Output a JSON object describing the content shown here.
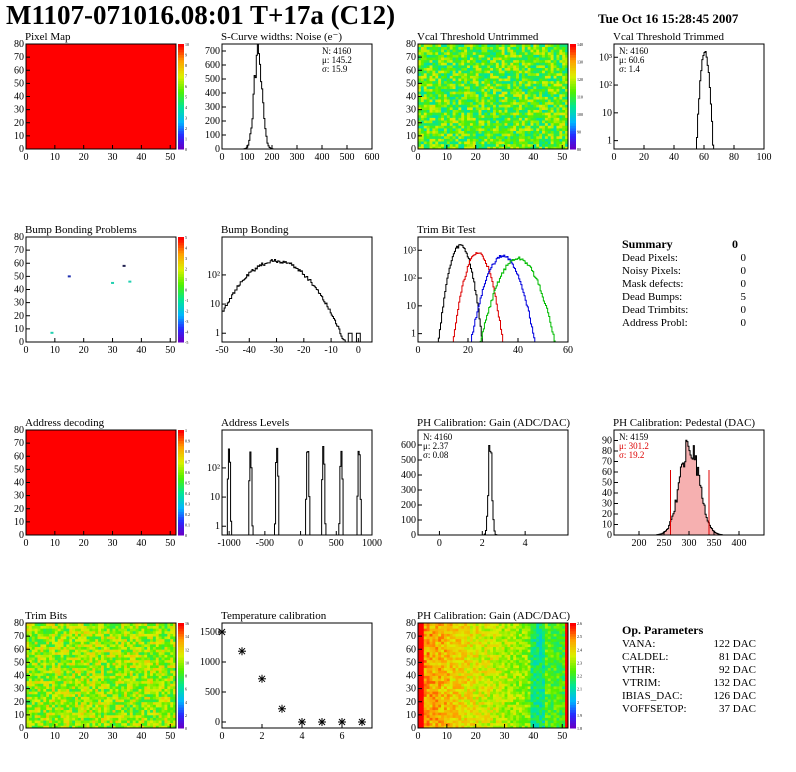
{
  "header": {
    "title": "M1107-071016.08:01 T+17a (C12)",
    "date": "Tue Oct 16 15:28:45 2007"
  },
  "colors": {
    "outline": "#000000",
    "heatmap_base": "#ff0000",
    "red_series": "#dd0000",
    "green_series": "#00bb00",
    "blue_series": "#0000dd"
  },
  "summary": {
    "title": "Summary",
    "total": "0",
    "rows": [
      {
        "label": "Dead Pixels:",
        "value": "0"
      },
      {
        "label": "Noisy Pixels:",
        "value": "0"
      },
      {
        "label": "Mask defects:",
        "value": "0"
      },
      {
        "label": "Dead Bumps:",
        "value": "5"
      },
      {
        "label": "Dead Trimbits:",
        "value": "0"
      },
      {
        "label": "Address Probl:",
        "value": "0"
      }
    ]
  },
  "op_params": {
    "title": "Op. Parameters",
    "rows": [
      {
        "label": "VANA:",
        "value": "122 DAC"
      },
      {
        "label": "CALDEL:",
        "value": "81 DAC"
      },
      {
        "label": "VTHR:",
        "value": "92 DAC"
      },
      {
        "label": "VTRIM:",
        "value": "132 DAC"
      },
      {
        "label": "IBIAS_DAC:",
        "value": "126 DAC"
      },
      {
        "label": "VOFFSETOP:",
        "value": "37 DAC"
      }
    ]
  },
  "chart_data": [
    {
      "id": "pixel-map",
      "type": "heatmap",
      "title": "Pixel Map",
      "xlim": [
        0,
        52
      ],
      "ylim": [
        0,
        80
      ],
      "xticks": [
        0,
        10,
        20,
        30,
        40,
        50
      ],
      "yticks": [
        0,
        10,
        20,
        30,
        40,
        50,
        60,
        70,
        80
      ],
      "fill": "uniform",
      "value": 10,
      "palette_ticks": [
        0,
        1,
        2,
        3,
        4,
        5,
        6,
        7,
        8,
        9,
        10
      ]
    },
    {
      "id": "scurve-noise",
      "type": "histogram",
      "title": "S-Curve widths: Noise (e⁻)",
      "xlim": [
        0,
        600
      ],
      "ylim": [
        0,
        750
      ],
      "xticks": [
        0,
        100,
        200,
        300,
        400,
        500,
        600
      ],
      "yticks": [
        0,
        100,
        200,
        300,
        400,
        500,
        600,
        700
      ],
      "peaks": [
        {
          "mean": 145.2,
          "sigma": 15.9,
          "height": 700
        }
      ],
      "stats": [
        {
          "label": "N:",
          "value": "4160"
        },
        {
          "label": "μ:",
          "value": "145.2"
        },
        {
          "label": "σ:",
          "value": "15.9"
        }
      ]
    },
    {
      "id": "vcal-untrimmed",
      "type": "heatmap",
      "title": "Vcal Threshold Untrimmed",
      "xlim": [
        0,
        52
      ],
      "ylim": [
        0,
        80
      ],
      "xticks": [
        0,
        10,
        20,
        30,
        40,
        50
      ],
      "yticks": [
        0,
        10,
        20,
        30,
        40,
        50,
        60,
        70,
        80
      ],
      "fill": "noise",
      "mean": 0.55,
      "spread": 0.18,
      "palette_ticks": [
        80,
        90,
        100,
        110,
        120,
        130,
        140
      ]
    },
    {
      "id": "vcal-trimmed",
      "type": "histogram",
      "title": "Vcal Threshold Trimmed",
      "log": true,
      "xlim": [
        0,
        100
      ],
      "ylim": [
        0.5,
        3000
      ],
      "xticks": [
        0,
        20,
        40,
        60,
        80,
        100
      ],
      "yticks": [
        1,
        10,
        100,
        1000
      ],
      "peaks": [
        {
          "mean": 60.6,
          "sigma": 1.4,
          "height": 1500
        }
      ],
      "stats": [
        {
          "label": "N:",
          "value": "4160"
        },
        {
          "label": "μ:",
          "value": "60.6"
        },
        {
          "label": "σ:",
          "value": "1.4"
        }
      ]
    },
    {
      "id": "bump-problems",
      "type": "heatmap",
      "title": "Bump Bonding Problems",
      "xlim": [
        0,
        52
      ],
      "ylim": [
        0,
        80
      ],
      "xticks": [
        0,
        10,
        20,
        30,
        40,
        50
      ],
      "yticks": [
        0,
        10,
        20,
        30,
        40,
        50,
        60,
        70,
        80
      ],
      "fill": "empty",
      "points": [
        [
          15,
          50,
          "#2030b0"
        ],
        [
          34,
          58,
          "#202050"
        ],
        [
          30,
          45,
          "#20d0b0"
        ],
        [
          36,
          46,
          "#20d0b0"
        ],
        [
          9,
          7,
          "#20d0b0"
        ]
      ],
      "palette_ticks": [
        -5,
        -4,
        -3,
        -2,
        -1,
        0,
        1,
        2,
        3,
        4,
        5
      ]
    },
    {
      "id": "bump-bonding",
      "type": "histogram",
      "title": "Bump Bonding",
      "log": true,
      "xlim": [
        -50,
        5
      ],
      "ylim": [
        0.5,
        2000
      ],
      "xticks": [
        -50,
        -40,
        -30,
        -20,
        -10,
        0
      ],
      "xticklabels": [
        "-50",
        "-40",
        "-30",
        "-20",
        "-10",
        "0"
      ],
      "yticks": [
        1,
        10,
        100
      ],
      "peaks": [
        {
          "mean": -30,
          "sigma": 7,
          "height": 300
        }
      ],
      "extra": [
        [
          -3,
          1
        ],
        [
          0,
          1
        ]
      ]
    },
    {
      "id": "trim-bit-test",
      "type": "histogram",
      "title": "Trim Bit Test",
      "log": true,
      "xlim": [
        0,
        60
      ],
      "ylim": [
        0.5,
        3000
      ],
      "xticks": [
        0,
        20,
        40,
        60
      ],
      "yticks": [
        1,
        10,
        100,
        1000
      ],
      "peaks": [
        {
          "mean": 17,
          "sigma": 2.2,
          "height": 1500,
          "color": "#000000"
        },
        {
          "mean": 24,
          "sigma": 2.6,
          "height": 800,
          "color": "#dd0000"
        },
        {
          "mean": 34,
          "sigma": 3.4,
          "height": 600,
          "color": "#0000dd"
        },
        {
          "mean": 40,
          "sigma": 4.0,
          "height": 500,
          "color": "#00bb00"
        }
      ]
    },
    {
      "id": "address-decoding",
      "type": "heatmap",
      "title": "Address decoding",
      "xlim": [
        0,
        52
      ],
      "ylim": [
        0,
        80
      ],
      "xticks": [
        0,
        10,
        20,
        30,
        40,
        50
      ],
      "yticks": [
        0,
        10,
        20,
        30,
        40,
        50,
        60,
        70,
        80
      ],
      "fill": "uniform",
      "value": 1,
      "palette_ticks": [
        0,
        0.1,
        0.2,
        0.3,
        0.4,
        0.5,
        0.6,
        0.7,
        0.8,
        0.9,
        1
      ]
    },
    {
      "id": "address-levels",
      "type": "histogram",
      "title": "Address Levels",
      "log": true,
      "xlim": [
        -1100,
        1000
      ],
      "ylim": [
        0.5,
        2000
      ],
      "xticks": [
        -1000,
        -500,
        0,
        500,
        1000
      ],
      "yticks": [
        1,
        10,
        100
      ],
      "peaks": [
        {
          "mean": -1000,
          "sigma": 8,
          "height": 500
        },
        {
          "mean": -700,
          "sigma": 8,
          "height": 400
        },
        {
          "mean": -330,
          "sigma": 8,
          "height": 500
        },
        {
          "mean": 100,
          "sigma": 8,
          "height": 500
        },
        {
          "mean": 320,
          "sigma": 8,
          "height": 500
        },
        {
          "mean": 570,
          "sigma": 8,
          "height": 400
        },
        {
          "mean": 820,
          "sigma": 8,
          "height": 500
        }
      ]
    },
    {
      "id": "ph-gain",
      "type": "histogram",
      "title": "PH Calibration: Gain (ADC/DAC)",
      "xlim": [
        -1,
        6
      ],
      "ylim": [
        0,
        700
      ],
      "xticks": [
        0,
        2,
        4
      ],
      "yticks": [
        0,
        100,
        200,
        300,
        400,
        500,
        600
      ],
      "peaks": [
        {
          "mean": 2.37,
          "sigma": 0.08,
          "height": 620
        }
      ],
      "stats": [
        {
          "label": "N:",
          "value": "4160"
        },
        {
          "label": "μ:",
          "value": "2.37"
        },
        {
          "label": "σ:",
          "value": "0.08"
        }
      ]
    },
    {
      "id": "ph-pedestal",
      "type": "histogram",
      "title": "PH Calibration: Pedestal (DAC)",
      "xlim": [
        150,
        450
      ],
      "ylim": [
        0,
        100
      ],
      "xticks": [
        200,
        250,
        300,
        350,
        400
      ],
      "yticks": [
        0,
        10,
        20,
        30,
        40,
        50,
        60,
        70,
        80,
        90
      ],
      "peaks": [
        {
          "mean": 301.2,
          "sigma": 19.2,
          "height": 85
        }
      ],
      "hatched": true,
      "cut_lines": [
        263,
        340
      ],
      "stats": [
        {
          "label": "N:",
          "value": "4159",
          "color": "#000000"
        },
        {
          "label": "μ:",
          "value": "301.2",
          "color": "#dd0000"
        },
        {
          "label": "σ:",
          "value": "19.2",
          "color": "#dd0000"
        }
      ]
    },
    {
      "id": "trim-bits",
      "type": "heatmap",
      "title": "Trim Bits",
      "xlim": [
        0,
        52
      ],
      "ylim": [
        0,
        80
      ],
      "xticks": [
        0,
        10,
        20,
        30,
        40,
        50
      ],
      "yticks": [
        0,
        10,
        20,
        30,
        40,
        50,
        60,
        70,
        80
      ],
      "fill": "noise",
      "mean": 0.62,
      "spread": 0.16,
      "palette_ticks": [
        0,
        2,
        4,
        6,
        8,
        10,
        12,
        14,
        16
      ]
    },
    {
      "id": "temperature-calibration",
      "type": "scatter",
      "title": "Temperature calibration",
      "xlim": [
        0,
        7.5
      ],
      "ylim": [
        -100,
        1650
      ],
      "xticks": [
        0,
        2,
        4,
        6
      ],
      "yticks": [
        0,
        500,
        1000,
        1500
      ],
      "x": [
        0,
        1,
        2,
        3,
        4,
        5,
        6,
        7
      ],
      "y": [
        1500,
        1180,
        720,
        220,
        0,
        0,
        0,
        0
      ]
    },
    {
      "id": "ph-gain-map",
      "type": "heatmap",
      "title": "PH Calibration: Gain (ADC/DAC)",
      "xlim": [
        0,
        52
      ],
      "ylim": [
        0,
        80
      ],
      "xticks": [
        0,
        10,
        20,
        30,
        40,
        50
      ],
      "yticks": [
        0,
        10,
        20,
        30,
        40,
        50,
        60,
        70,
        80
      ],
      "fill": "gradient",
      "palette_ticks": [
        1.8,
        1.9,
        2,
        2.1,
        2.2,
        2.3,
        2.4,
        2.5,
        2.6
      ]
    }
  ]
}
